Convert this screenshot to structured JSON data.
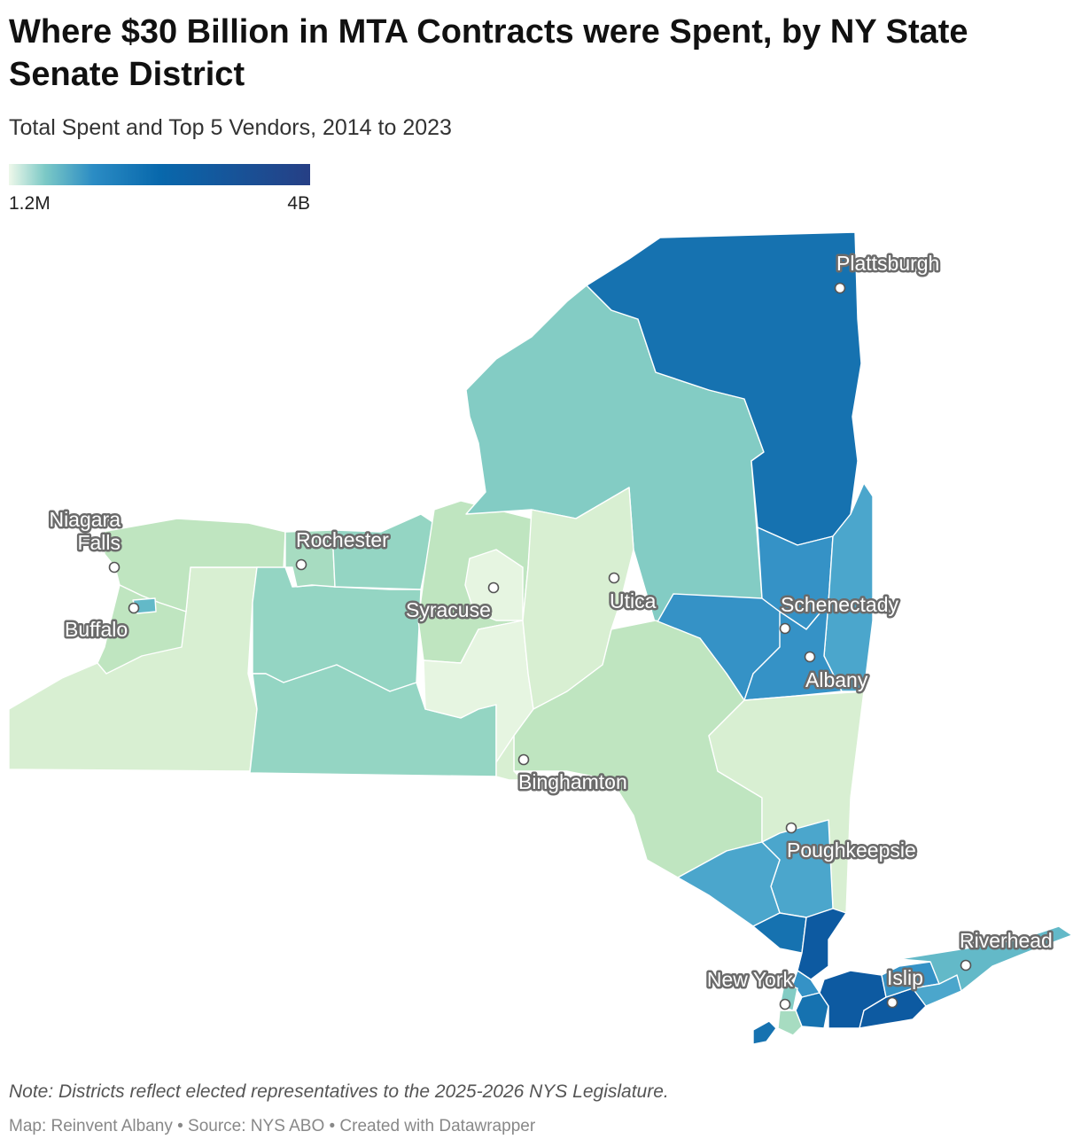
{
  "title": "Where $30 Billion in MTA Contracts were Spent, by NY State Senate District",
  "subtitle": "Total Spent and Top 5 Vendors, 2014 to 2023",
  "legend": {
    "min_label": "1.2M",
    "max_label": "4B",
    "colors": [
      "#eef8ea",
      "#7cc9c6",
      "#2b8cc4",
      "#0868ac",
      "#263f85"
    ]
  },
  "palette": {
    "lightest": "#e6f5e1",
    "light": "#d8efd2",
    "pale_green": "#bfe5c0",
    "mint": "#a7dcc1",
    "seafoam": "#94d5c3",
    "teal": "#83ccc4",
    "aqua": "#63b9c8",
    "sky": "#4ba6cc",
    "blue": "#3592c6",
    "deep_blue": "#1672b0",
    "navy": "#0d5aa1"
  },
  "cities": [
    {
      "name": "Plattsburgh"
    },
    {
      "name": "Niagara Falls"
    },
    {
      "name": "Rochester"
    },
    {
      "name": "Syracuse"
    },
    {
      "name": "Utica"
    },
    {
      "name": "Schenectady"
    },
    {
      "name": "Albany"
    },
    {
      "name": "Buffalo"
    },
    {
      "name": "Binghamton"
    },
    {
      "name": "Poughkeepsie"
    },
    {
      "name": "Riverhead"
    },
    {
      "name": "New York"
    },
    {
      "name": "Islip"
    }
  ],
  "footer": {
    "note": "Note: Districts reflect elected representatives to the 2025-2026 NYS Legislature.",
    "credit": "Map: Reinvent Albany • Source: NYS ABO • Created with Datawrapper"
  }
}
